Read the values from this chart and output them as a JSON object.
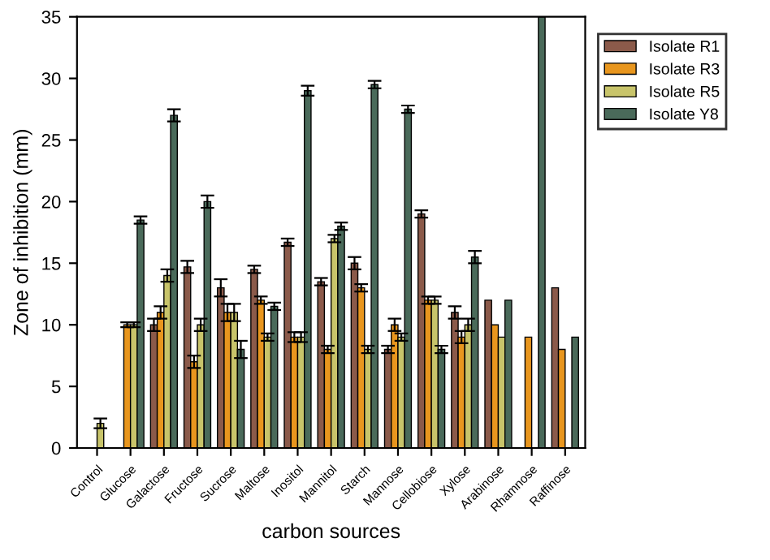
{
  "chart_data": {
    "type": "bar",
    "xlabel": "carbon sources",
    "ylabel": "Zone of inhibition (mm)",
    "categories": [
      "Control",
      "Glucose",
      "Galactose",
      "Fructose",
      "Sucrose",
      "Maltose",
      "Inositol",
      "Mannitol",
      "Starch",
      "Mannose",
      "Cellobiose",
      "Xylose",
      "Arabinose",
      "Rhamnose",
      "Raffinose"
    ],
    "series": [
      {
        "name": "Isolate R1",
        "color": "#8b5a4a",
        "values": [
          0,
          0,
          10,
          14.7,
          13,
          14.5,
          16.7,
          13.5,
          15,
          8,
          19,
          11,
          12,
          0,
          13
        ],
        "errors": [
          null,
          null,
          0.5,
          0.5,
          0.7,
          0.3,
          0.3,
          0.3,
          0.5,
          0.3,
          0.3,
          0.5,
          null,
          null,
          null
        ]
      },
      {
        "name": "Isolate R3",
        "color": "#e8961e",
        "values": [
          0,
          10,
          11,
          7,
          11,
          12,
          9,
          8,
          13,
          10,
          12,
          9,
          10,
          9,
          8
        ],
        "errors": [
          null,
          0.2,
          0.5,
          0.5,
          0.7,
          0.3,
          0.4,
          0.3,
          0.3,
          0.5,
          0.3,
          0.5,
          null,
          null,
          null
        ]
      },
      {
        "name": "Isolate R5",
        "color": "#c8c46a",
        "values": [
          2,
          10,
          14,
          10,
          11,
          9,
          9,
          17,
          8,
          9,
          12,
          10,
          9,
          0,
          0
        ],
        "errors": [
          0.4,
          0.2,
          0.5,
          0.5,
          0.7,
          0.3,
          0.4,
          0.3,
          0.3,
          0.3,
          0.3,
          0.5,
          null,
          null,
          null
        ]
      },
      {
        "name": "Isolate Y8",
        "color": "#4a6a5a",
        "values": [
          0,
          18.5,
          27,
          20,
          8,
          11.5,
          29,
          18,
          29.5,
          27.5,
          8,
          15.5,
          12,
          35,
          9
        ],
        "errors": [
          null,
          0.3,
          0.5,
          0.5,
          0.7,
          0.3,
          0.4,
          0.3,
          0.3,
          0.3,
          0.3,
          0.5,
          null,
          null,
          null
        ]
      }
    ],
    "ylim": [
      0,
      35
    ],
    "yticks": [
      0,
      5,
      10,
      15,
      20,
      25,
      30,
      35
    ],
    "grid": false,
    "legend": "right"
  }
}
